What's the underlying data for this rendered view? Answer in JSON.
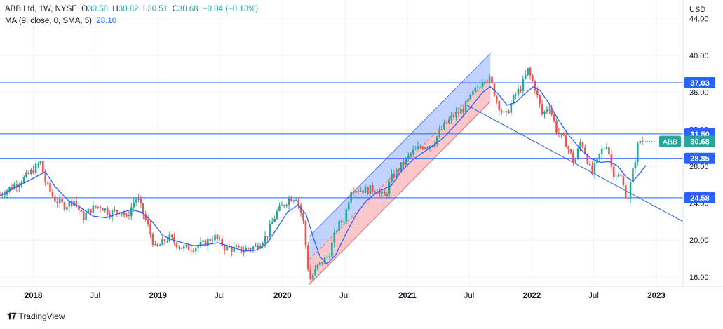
{
  "header": {
    "symbol": "ABB Ltd, 1W, NYSE",
    "open_label": "O",
    "open": "30.58",
    "high_label": "H",
    "high": "30.82",
    "low_label": "L",
    "low": "30.51",
    "close_label": "C",
    "close": "30.68",
    "change": "−0.04 (−0.13%)",
    "ma_label": "MA (9, close, 0, SMA, 5)",
    "ma_value": "28.10"
  },
  "currency": "USD",
  "brand": "TradingView",
  "colors": {
    "up": "#26a69a",
    "down": "#ef5350",
    "ma": "#2962ff",
    "level": "#2962ff",
    "channel_upper": "#5b7cf6",
    "channel_lower": "#f28b8b",
    "price_badge": "#26a69a"
  },
  "chart_data": {
    "type": "candlestick",
    "symbol": "ABB",
    "interval": "1W",
    "ylim": [
      15,
      46
    ],
    "y_ticks": [
      "16.00",
      "20.00",
      "24.00",
      "28.00",
      "32.00",
      "36.00",
      "40.00",
      "44.00"
    ],
    "x_ticks": [
      "2018",
      "Jul",
      "2019",
      "Jul",
      "2020",
      "Jul",
      "2021",
      "Jul",
      "2022",
      "Jul",
      "2023"
    ],
    "x_tick_dates": [
      "2018-01-01",
      "2018-07-01",
      "2019-01-01",
      "2019-07-01",
      "2020-01-01",
      "2020-07-01",
      "2021-01-01",
      "2021-07-01",
      "2022-01-01",
      "2022-07-01",
      "2023-01-01"
    ],
    "x_range": [
      "2017-09-25",
      "2023-03-20"
    ],
    "price_series": [
      [
        "2017-09-25",
        25.0
      ],
      [
        "2017-11-01",
        25.8
      ],
      [
        "2017-12-15",
        27.0
      ],
      [
        "2018-01-22",
        28.4
      ],
      [
        "2018-02-05",
        26.3
      ],
      [
        "2018-03-01",
        24.5
      ],
      [
        "2018-04-01",
        23.7
      ],
      [
        "2018-05-01",
        24.3
      ],
      [
        "2018-05-25",
        22.4
      ],
      [
        "2018-06-20",
        23.4
      ],
      [
        "2018-07-15",
        23.7
      ],
      [
        "2018-08-15",
        22.9
      ],
      [
        "2018-09-15",
        23.3
      ],
      [
        "2018-10-01",
        22.3
      ],
      [
        "2018-10-20",
        24.0
      ],
      [
        "2018-11-01",
        24.6
      ],
      [
        "2018-12-01",
        21.7
      ],
      [
        "2018-12-25",
        19.0
      ],
      [
        "2019-02-01",
        20.3
      ],
      [
        "2019-03-15",
        19.1
      ],
      [
        "2019-04-15",
        19.2
      ],
      [
        "2019-05-10",
        19.5
      ],
      [
        "2019-06-15",
        20.4
      ],
      [
        "2019-07-15",
        19.2
      ],
      [
        "2019-09-01",
        18.9
      ],
      [
        "2019-10-15",
        19.3
      ],
      [
        "2019-11-15",
        20.4
      ],
      [
        "2019-12-15",
        23.0
      ],
      [
        "2020-01-20",
        24.5
      ],
      [
        "2020-02-10",
        24.7
      ],
      [
        "2020-03-01",
        22.3
      ],
      [
        "2020-03-20",
        15.6
      ],
      [
        "2020-04-15",
        17.2
      ],
      [
        "2020-05-15",
        18.3
      ],
      [
        "2020-06-10",
        21.5
      ],
      [
        "2020-07-01",
        22.4
      ],
      [
        "2020-07-20",
        25.6
      ],
      [
        "2020-09-01",
        25.4
      ],
      [
        "2020-10-01",
        25.6
      ],
      [
        "2020-10-25",
        24.5
      ],
      [
        "2020-11-15",
        26.7
      ],
      [
        "2020-12-20",
        28.3
      ],
      [
        "2021-01-15",
        29.5
      ],
      [
        "2021-02-15",
        30.2
      ],
      [
        "2021-03-15",
        30.4
      ],
      [
        "2021-04-15",
        32.2
      ],
      [
        "2021-05-15",
        33.4
      ],
      [
        "2021-06-15",
        34.2
      ],
      [
        "2021-07-15",
        36.0
      ],
      [
        "2021-08-15",
        37.6
      ],
      [
        "2021-09-01",
        37.3
      ],
      [
        "2021-09-25",
        34.6
      ],
      [
        "2021-10-15",
        33.3
      ],
      [
        "2021-11-10",
        35.5
      ],
      [
        "2021-12-01",
        36.6
      ],
      [
        "2021-12-20",
        38.4
      ],
      [
        "2022-01-10",
        36.5
      ],
      [
        "2022-02-01",
        33.5
      ],
      [
        "2022-02-20",
        34.7
      ],
      [
        "2022-03-15",
        31.8
      ],
      [
        "2022-04-10",
        30.6
      ],
      [
        "2022-05-05",
        28.3
      ],
      [
        "2022-05-25",
        30.8
      ],
      [
        "2022-06-10",
        29.1
      ],
      [
        "2022-06-25",
        27.0
      ],
      [
        "2022-07-20",
        29.4
      ],
      [
        "2022-08-10",
        30.5
      ],
      [
        "2022-08-25",
        27.3
      ],
      [
        "2022-09-20",
        26.8
      ],
      [
        "2022-10-01",
        25.0
      ],
      [
        "2022-10-10",
        24.7
      ],
      [
        "2022-10-25",
        27.6
      ],
      [
        "2022-11-10",
        30.8
      ],
      [
        "2022-11-25",
        30.68
      ]
    ],
    "ma_series": [
      [
        "2017-09-25",
        24.8
      ],
      [
        "2018-01-01",
        26.7
      ],
      [
        "2018-02-05",
        27.4
      ],
      [
        "2018-03-05",
        25.8
      ],
      [
        "2018-04-15",
        24.2
      ],
      [
        "2018-05-20",
        23.5
      ],
      [
        "2018-06-25",
        22.6
      ],
      [
        "2018-08-01",
        22.4
      ],
      [
        "2018-09-01",
        22.8
      ],
      [
        "2018-10-15",
        23.3
      ],
      [
        "2018-11-15",
        23.0
      ],
      [
        "2018-12-15",
        22.0
      ],
      [
        "2019-01-15",
        20.5
      ],
      [
        "2019-02-15",
        20.0
      ],
      [
        "2019-03-15",
        19.7
      ],
      [
        "2019-04-15",
        19.4
      ],
      [
        "2019-05-20",
        19.5
      ],
      [
        "2019-06-25",
        19.7
      ],
      [
        "2019-08-01",
        19.3
      ],
      [
        "2019-09-10",
        18.8
      ],
      [
        "2019-10-15",
        18.9
      ],
      [
        "2019-11-15",
        19.6
      ],
      [
        "2019-12-15",
        21.2
      ],
      [
        "2020-01-15",
        23.0
      ],
      [
        "2020-02-15",
        23.8
      ],
      [
        "2020-03-10",
        22.8
      ],
      [
        "2020-04-01",
        20.2
      ],
      [
        "2020-04-20",
        18.2
      ],
      [
        "2020-05-10",
        17.4
      ],
      [
        "2020-06-05",
        18.4
      ],
      [
        "2020-07-01",
        20.4
      ],
      [
        "2020-08-01",
        22.6
      ],
      [
        "2020-09-01",
        24.2
      ],
      [
        "2020-10-05",
        25.2
      ],
      [
        "2020-11-15",
        25.9
      ],
      [
        "2020-12-15",
        27.5
      ],
      [
        "2021-01-20",
        28.8
      ],
      [
        "2021-03-01",
        29.8
      ],
      [
        "2021-04-15",
        31.0
      ],
      [
        "2021-05-25",
        32.6
      ],
      [
        "2021-07-01",
        34.2
      ],
      [
        "2021-08-10",
        36.0
      ],
      [
        "2021-09-01",
        36.6
      ],
      [
        "2021-09-25",
        35.8
      ],
      [
        "2021-10-20",
        34.6
      ],
      [
        "2021-11-15",
        34.9
      ],
      [
        "2021-12-10",
        35.8
      ],
      [
        "2022-01-05",
        36.6
      ],
      [
        "2022-01-25",
        36.2
      ],
      [
        "2022-02-20",
        34.8
      ],
      [
        "2022-03-20",
        33.0
      ],
      [
        "2022-04-20",
        31.3
      ],
      [
        "2022-05-25",
        29.8
      ],
      [
        "2022-06-25",
        28.8
      ],
      [
        "2022-07-20",
        28.4
      ],
      [
        "2022-08-15",
        28.5
      ],
      [
        "2022-09-10",
        28.0
      ],
      [
        "2022-10-05",
        26.8
      ],
      [
        "2022-10-25",
        26.4
      ],
      [
        "2022-11-15",
        27.3
      ],
      [
        "2022-12-01",
        28.1
      ]
    ],
    "horizontal_levels": [
      {
        "price": 37.03,
        "label": "37.03"
      },
      {
        "price": 31.5,
        "label": "31.50"
      },
      {
        "price": 28.85,
        "label": "28.85"
      },
      {
        "price": 24.58,
        "label": "24.58"
      }
    ],
    "current_price": {
      "price": 30.68,
      "label": "30.68",
      "tag": "ABB"
    },
    "trend_line": {
      "start": [
        "2021-06-25",
        34.6
      ],
      "end": [
        "2023-03-20",
        22.0
      ]
    },
    "channel": {
      "upper": [
        [
          "2020-03-20",
          20.4
        ],
        [
          "2021-09-01",
          40.2
        ]
      ],
      "middle": [
        [
          "2020-03-20",
          17.9
        ],
        [
          "2021-09-01",
          37.6
        ]
      ],
      "lower": [
        [
          "2020-03-20",
          15.2
        ],
        [
          "2021-09-01",
          35.0
        ]
      ]
    }
  }
}
